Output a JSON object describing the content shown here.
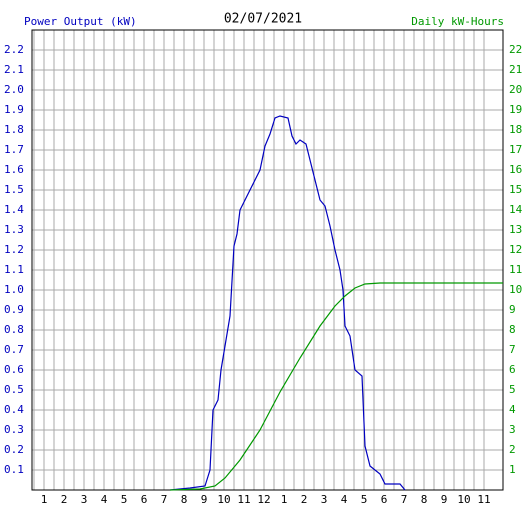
{
  "chart_data": {
    "type": "line",
    "title": "02/07/2021",
    "grid": true,
    "xlim": [
      0.4,
      23.95
    ],
    "xticks": [
      1,
      2,
      3,
      4,
      5,
      6,
      7,
      8,
      9,
      10,
      11,
      12,
      {
        "value": 13,
        "label": "1"
      },
      {
        "value": 14,
        "label": "2"
      },
      {
        "value": 15,
        "label": "3"
      },
      {
        "value": 16,
        "label": "4"
      },
      {
        "value": 17,
        "label": "5"
      },
      {
        "value": 18,
        "label": "6"
      },
      {
        "value": 19,
        "label": "7"
      },
      {
        "value": 20,
        "label": "8"
      },
      {
        "value": 21,
        "label": "9"
      },
      {
        "value": 22,
        "label": "10"
      },
      {
        "value": 23,
        "label": "11"
      }
    ],
    "ylim": [
      0,
      2.3
    ],
    "yticks": [
      0.1,
      0.2,
      0.3,
      0.4,
      0.5,
      0.6,
      0.7,
      0.8,
      0.9,
      {
        "value": 1,
        "label": "1.0"
      },
      1.1,
      1.2,
      1.3,
      1.4,
      1.5,
      1.6,
      1.7,
      1.8,
      1.9,
      {
        "value": 2,
        "label": "2.0"
      },
      2.1,
      2.2
    ],
    "y2lim": [
      0,
      23
    ],
    "y2ticks": [
      1,
      2,
      3,
      4,
      5,
      6,
      7,
      8,
      9,
      10,
      11,
      12,
      13,
      14,
      15,
      16,
      17,
      18,
      19,
      20,
      21,
      22
    ],
    "series": [
      {
        "name": "Power Output (kW)",
        "color": "#0000c0",
        "x": [
          7.3,
          8.3,
          9.05,
          9.3,
          9.45,
          9.7,
          9.85,
          10.1,
          10.3,
          10.5,
          10.65,
          10.8,
          11.05,
          11.3,
          11.55,
          11.8,
          12.05,
          12.3,
          12.55,
          12.8,
          13.2,
          13.4,
          13.6,
          13.8,
          14.1,
          14.3,
          14.55,
          14.8,
          15.05,
          15.3,
          15.55,
          15.8,
          15.95,
          16.05,
          16.3,
          16.55,
          16.9,
          17.05,
          17.3,
          17.8,
          18.05,
          18.8,
          19.05
        ],
        "values": [
          0,
          0.01,
          0.02,
          0.1,
          0.4,
          0.45,
          0.6,
          0.75,
          0.87,
          1.22,
          1.28,
          1.4,
          1.45,
          1.5,
          1.55,
          1.6,
          1.72,
          1.78,
          1.86,
          1.87,
          1.86,
          1.77,
          1.73,
          1.75,
          1.73,
          1.65,
          1.55,
          1.45,
          1.42,
          1.32,
          1.2,
          1.1,
          1.0,
          0.82,
          0.77,
          0.6,
          0.57,
          0.22,
          0.12,
          0.08,
          0.03,
          0.03,
          0
        ]
      },
      {
        "name": "Daily kW-Hours",
        "color": "#009900",
        "axis": "y2",
        "x": [
          7.3,
          8.8,
          9.55,
          10.05,
          10.8,
          11.8,
          12.8,
          13.8,
          14.8,
          15.55,
          16.05,
          16.55,
          17.05,
          17.8,
          23.95
        ],
        "values": [
          0,
          0.05,
          0.2,
          0.6,
          1.5,
          3.0,
          4.9,
          6.6,
          8.2,
          9.2,
          9.7,
          10.1,
          10.3,
          10.35,
          10.35
        ]
      }
    ]
  }
}
